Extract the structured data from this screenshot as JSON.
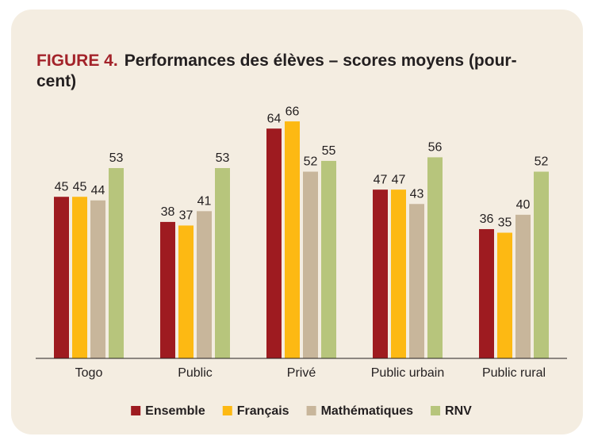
{
  "chart_data": {
    "type": "bar",
    "figure_label": "FIGURE 4.",
    "title": "Performances des élèves – scores moyens (pour-cent)",
    "categories": [
      "Togo",
      "Public",
      "Privé",
      "Public urbain",
      "Public rural"
    ],
    "series": [
      {
        "name": "Ensemble",
        "color": "#9e1b20",
        "values": [
          45,
          38,
          64,
          47,
          36
        ]
      },
      {
        "name": "Français",
        "color": "#fdb913",
        "values": [
          45,
          37,
          66,
          47,
          35
        ]
      },
      {
        "name": "Mathématiques",
        "color": "#c8b69b",
        "values": [
          44,
          41,
          52,
          43,
          40
        ]
      },
      {
        "name": "RNV",
        "color": "#b7c57c",
        "values": [
          53,
          53,
          55,
          56,
          52
        ]
      }
    ],
    "ylim": [
      0,
      70
    ],
    "legend": "bottom"
  }
}
